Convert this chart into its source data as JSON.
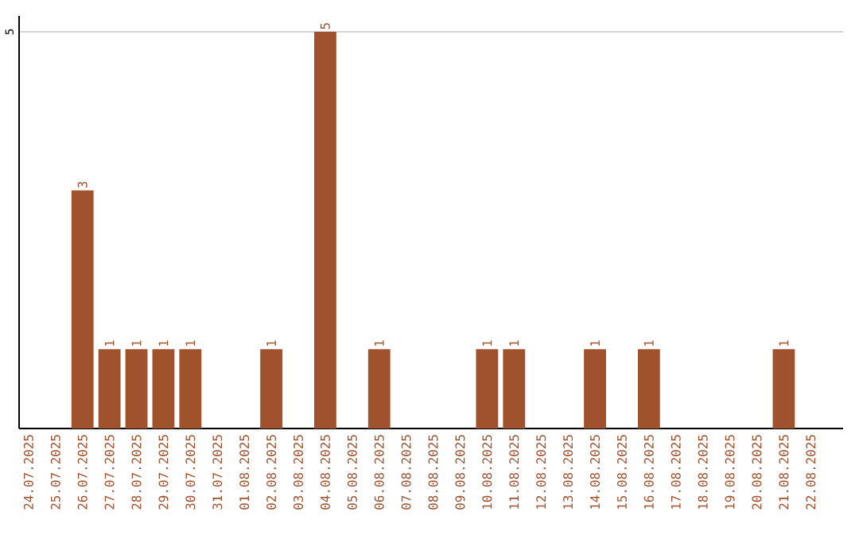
{
  "chart_data": {
    "type": "bar",
    "categories": [
      "24.07.2025",
      "25.07.2025",
      "26.07.2025",
      "27.07.2025",
      "28.07.2025",
      "29.07.2025",
      "30.07.2025",
      "31.07.2025",
      "01.08.2025",
      "02.08.2025",
      "03.08.2025",
      "04.08.2025",
      "05.08.2025",
      "06.08.2025",
      "07.08.2025",
      "08.08.2025",
      "09.08.2025",
      "10.08.2025",
      "11.08.2025",
      "12.08.2025",
      "13.08.2025",
      "14.08.2025",
      "15.08.2025",
      "16.08.2025",
      "17.08.2025",
      "18.08.2025",
      "19.08.2025",
      "20.08.2025",
      "21.08.2025",
      "22.08.2025"
    ],
    "values": [
      0,
      0,
      3,
      1,
      1,
      1,
      1,
      0,
      0,
      1,
      0,
      5,
      0,
      1,
      0,
      0,
      0,
      1,
      1,
      0,
      0,
      1,
      0,
      1,
      0,
      0,
      0,
      0,
      1,
      0
    ],
    "value_labels": [
      null,
      null,
      "3",
      "1",
      "1",
      "1",
      "1",
      null,
      null,
      "1",
      null,
      "5",
      null,
      "1",
      null,
      null,
      null,
      "1",
      "1",
      null,
      null,
      "1",
      null,
      "1",
      null,
      null,
      null,
      null,
      "1",
      null
    ],
    "color": "#a0522d",
    "ylim": [
      0,
      5.2
    ],
    "yticks": [
      5
    ],
    "grid": "y"
  }
}
